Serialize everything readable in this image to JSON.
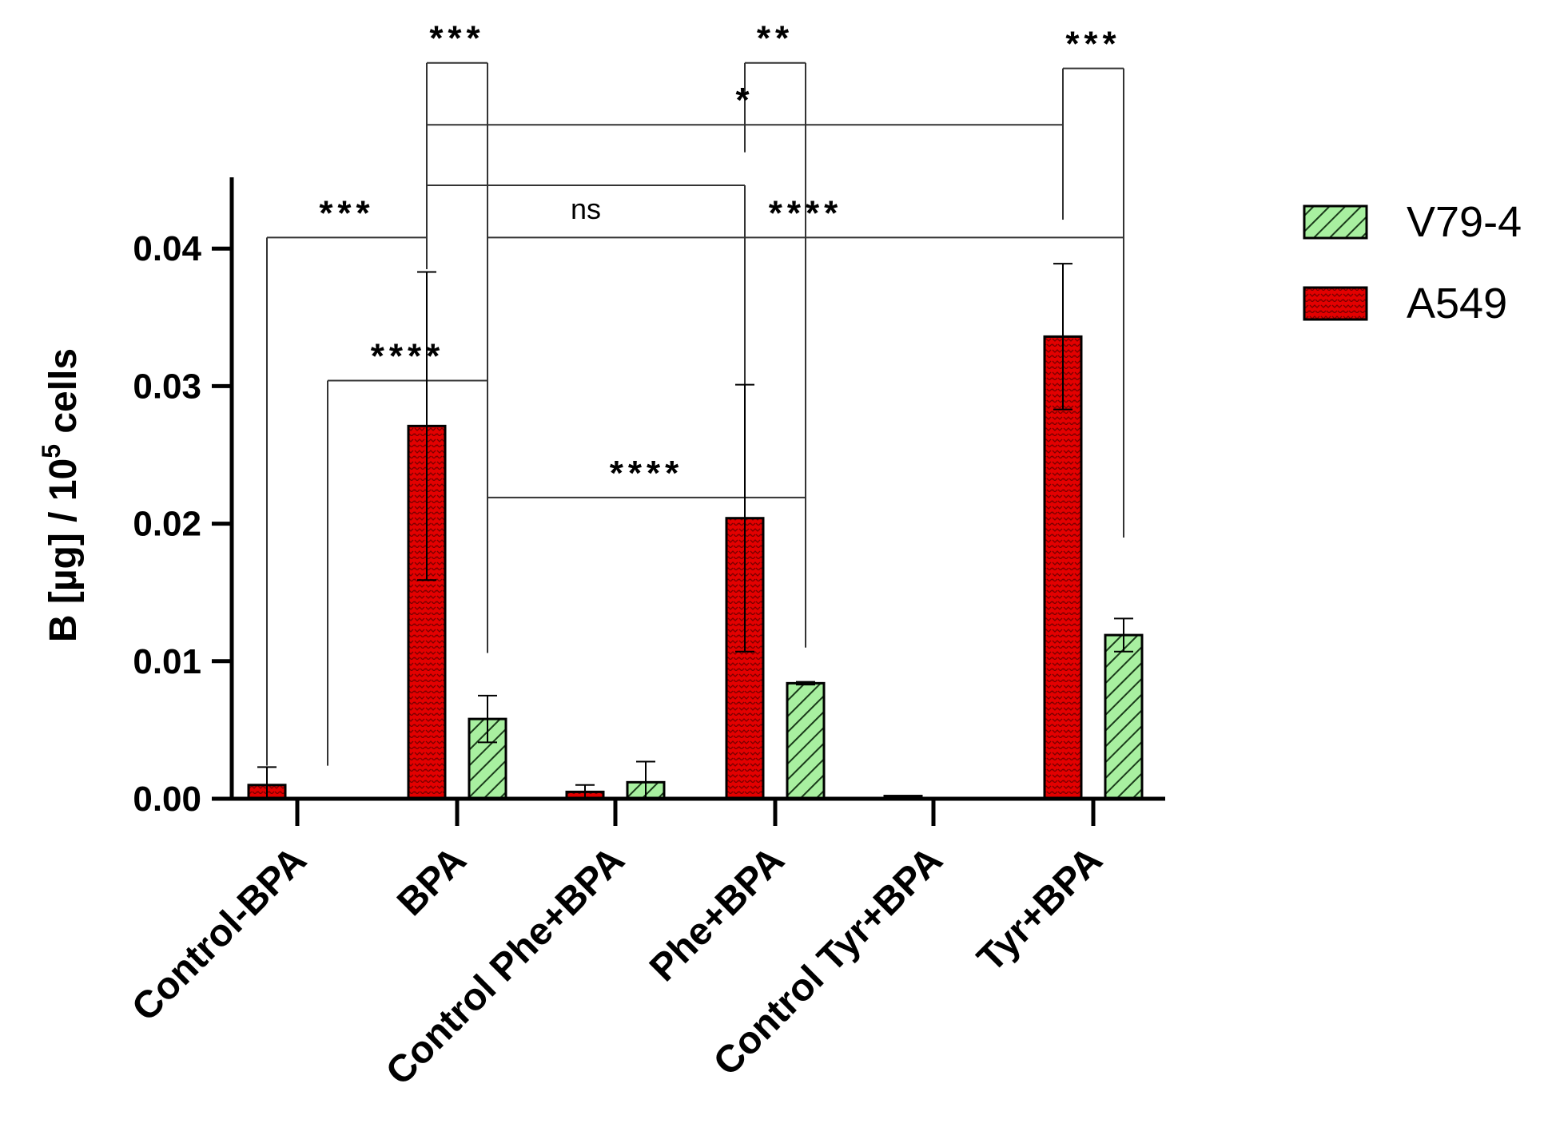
{
  "chart_data": {
    "type": "bar",
    "title": "",
    "xlabel": "",
    "ylabel": "B [µg] / 10",
    "ylabel_superscript": "5",
    "ylabel_suffix": " cells",
    "ylim": [
      0,
      0.045
    ],
    "yticks": [
      "0.00",
      "0.01",
      "0.02",
      "0.03",
      "0.04"
    ],
    "categories": [
      "Control-BPA",
      "BPA",
      "Control Phe+BPA",
      "Phe+BPA",
      "Control Tyr+BPA",
      "Tyr+BPA"
    ],
    "series": [
      {
        "name": "A549",
        "color": "#e30000",
        "pattern": "dotted",
        "values": [
          0.001,
          0.0271,
          0.0005,
          0.0204,
          0.0002,
          0.0336
        ],
        "errors": [
          0.0013,
          0.0112,
          0.0005,
          0.0097,
          0.0,
          0.0053
        ]
      },
      {
        "name": "V79-4",
        "color": "#a8f0a0",
        "pattern": "hatched",
        "values": [
          0.0,
          0.0058,
          0.0012,
          0.0084,
          0.0,
          0.0119
        ],
        "errors": [
          0.0,
          0.0017,
          0.0015,
          0.0001,
          0.0,
          0.0012
        ]
      }
    ],
    "legend": {
      "placement": "right",
      "entries": [
        "V79-4",
        "A549"
      ]
    },
    "significance": [
      {
        "label": "***",
        "from": [
          1,
          "A549"
        ],
        "to": [
          1,
          "V79-4"
        ],
        "y": 0.0535,
        "drop": [
          0.0385,
          0.0106
        ]
      },
      {
        "label": "**",
        "from": [
          3,
          "A549"
        ],
        "to": [
          3,
          "V79-4"
        ],
        "y": 0.0535,
        "drop": [
          0.047,
          0.011
        ]
      },
      {
        "label": "***",
        "from": [
          5,
          "A549"
        ],
        "to": [
          5,
          "V79-4"
        ],
        "y": 0.0531,
        "drop": [
          0.0421,
          0.019
        ]
      },
      {
        "label": "*",
        "from": [
          1,
          "A549"
        ],
        "to": [
          5,
          "A549"
        ],
        "y": 0.049,
        "drop": [
          0.0421,
          0.0421
        ]
      },
      {
        "label": "ns",
        "from": [
          1,
          "A549"
        ],
        "to": [
          3,
          "A549"
        ],
        "y": 0.0446,
        "drop": [
          0.0421,
          0.0301
        ]
      },
      {
        "label": "***",
        "from": [
          0,
          "A549"
        ],
        "to": [
          1,
          "A549"
        ],
        "y": 0.0408,
        "drop": [
          0.0024,
          0.0385
        ]
      },
      {
        "label": "****",
        "from": [
          1,
          "V79-4"
        ],
        "to": [
          5,
          "V79-4"
        ],
        "y": 0.0408,
        "drop": [
          0.0106,
          0.019
        ]
      },
      {
        "label": "****",
        "from": [
          0,
          "V79-4"
        ],
        "to": [
          1,
          "V79-4"
        ],
        "y": 0.0304,
        "drop": [
          0.0024,
          0.0106
        ]
      },
      {
        "label": "****",
        "from": [
          1,
          "V79-4"
        ],
        "to": [
          3,
          "V79-4"
        ],
        "y": 0.0219,
        "drop": [
          0.0106,
          0.011
        ]
      }
    ]
  }
}
